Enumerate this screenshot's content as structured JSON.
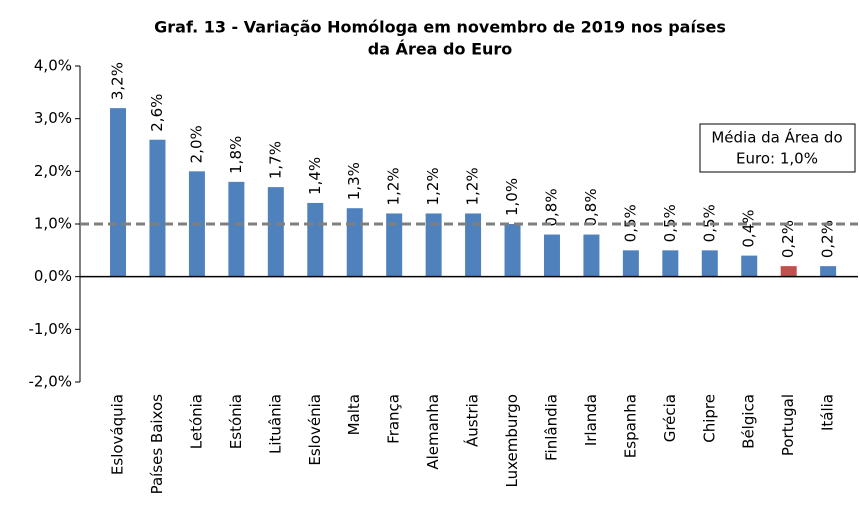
{
  "chart_data": {
    "type": "bar",
    "title": [
      "Graf. 13 - Variação Homóloga em novembro de 2019 nos países",
      "da Área do Euro"
    ],
    "categories": [
      "Eslováquia",
      "Países Baixos",
      "Letónia",
      "Estónia",
      "Lituânia",
      "Eslovénia",
      "Malta",
      "França",
      "Alemanha",
      "Áustria",
      "Luxemburgo",
      "Finlândia",
      "Irlanda",
      "Espanha",
      "Grécia",
      "Chipre",
      "Bélgica",
      "Portugal",
      "Itália"
    ],
    "values": [
      3.2,
      2.6,
      2.0,
      1.8,
      1.7,
      1.4,
      1.3,
      1.2,
      1.2,
      1.2,
      1.0,
      0.8,
      0.8,
      0.5,
      0.5,
      0.5,
      0.4,
      0.2,
      0.2
    ],
    "value_labels": [
      "3,2%",
      "2,6%",
      "2,0%",
      "1,8%",
      "1,7%",
      "1,4%",
      "1,3%",
      "1,2%",
      "1,2%",
      "1,2%",
      "1,0%",
      "0,8%",
      "0,8%",
      "0,5%",
      "0,5%",
      "0,5%",
      "0,4%",
      "0,2%",
      "0,2%"
    ],
    "colors": [
      "#4f81bd",
      "#4f81bd",
      "#4f81bd",
      "#4f81bd",
      "#4f81bd",
      "#4f81bd",
      "#4f81bd",
      "#4f81bd",
      "#4f81bd",
      "#4f81bd",
      "#4f81bd",
      "#4f81bd",
      "#4f81bd",
      "#4f81bd",
      "#4f81bd",
      "#4f81bd",
      "#4f81bd",
      "#c0504d",
      "#4f81bd"
    ],
    "ylim": [
      -2,
      4
    ],
    "yticks": [
      {
        "value": -2,
        "label": "-2,0%"
      },
      {
        "value": -1,
        "label": "-1,0%"
      },
      {
        "value": 0,
        "label": "0,0%"
      },
      {
        "value": 1,
        "label": "1,0%"
      },
      {
        "value": 2,
        "label": "2,0%"
      },
      {
        "value": 3,
        "label": "3,0%"
      },
      {
        "value": 4,
        "label": "4,0%"
      }
    ],
    "reference_line": {
      "value": 1.0,
      "color": "#7f7f7f",
      "label": [
        "Média da Área do",
        "Euro: 1,0%"
      ]
    }
  }
}
